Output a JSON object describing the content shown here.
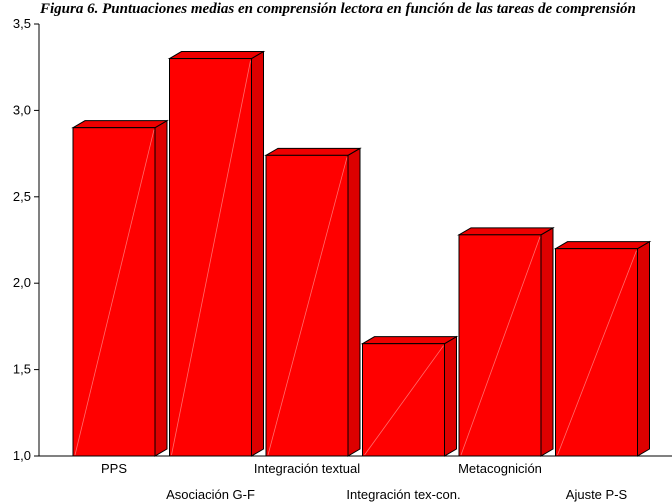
{
  "chart_data": {
    "type": "bar",
    "title": "Figura 6. Puntuaciones medias en comprensión lectora en función de las tareas de comprensión",
    "categories": [
      "PPS",
      "Asociación G-F",
      "Integración textual",
      "Integración tex-con.",
      "Metacognición",
      "Ajuste P-S"
    ],
    "values": [
      2.9,
      3.3,
      2.74,
      1.65,
      2.28,
      2.2
    ],
    "ylim": [
      1.0,
      3.5
    ],
    "yticks": [
      "1,0",
      "1,5",
      "2,0",
      "2,5",
      "3,0",
      "3,5"
    ],
    "xlabel": "",
    "ylabel": "",
    "grid": false,
    "bar_color": "#ff0000",
    "bar_top_color": "#ee0000",
    "bar_side_color": "#dd0000",
    "outline_color": "#000000"
  }
}
